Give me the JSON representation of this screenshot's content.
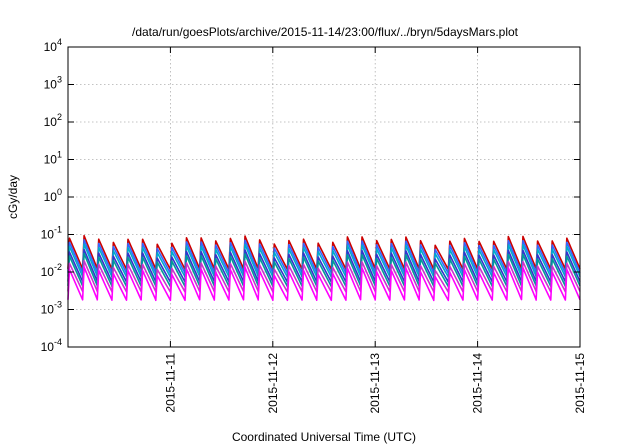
{
  "chart_data": {
    "type": "line",
    "title": "/data/run/goesPlots/archive/2015-11-14/23:00/flux/../bryn/5daysMars.plot",
    "xlabel": "Coordinated Universal Time (UTC)",
    "ylabel": "cGy/day",
    "yscale": "log",
    "ylim": [
      0.0001,
      10000
    ],
    "xlim": [
      "2015-11-10",
      "2015-11-15"
    ],
    "x_ticks": [
      "2015-11-11",
      "2015-11-12",
      "2015-11-13",
      "2015-11-14",
      "2015-11-15"
    ],
    "y_ticks": [
      {
        "base": "10",
        "exp": "-4"
      },
      {
        "base": "10",
        "exp": "-3"
      },
      {
        "base": "10",
        "exp": "-2"
      },
      {
        "base": "10",
        "exp": "-1"
      },
      {
        "base": "10",
        "exp": "0"
      },
      {
        "base": "10",
        "exp": "1"
      },
      {
        "base": "10",
        "exp": "2"
      },
      {
        "base": "10",
        "exp": "3"
      },
      {
        "base": "10",
        "exp": "4"
      }
    ],
    "grid": true,
    "pattern": {
      "cycles_per_day": 7,
      "note_peak_to_trough_ratio": 5
    },
    "series": [
      {
        "color": "#cc0000",
        "peak": 0.075,
        "trough": 0.012
      },
      {
        "color": "#3366ff",
        "peak": 0.058,
        "trough": 0.0095
      },
      {
        "color": "#00aacc",
        "peak": 0.045,
        "trough": 0.0075
      },
      {
        "color": "#3333cc",
        "peak": 0.032,
        "trough": 0.0055
      },
      {
        "color": "#009999",
        "peak": 0.025,
        "trough": 0.0042
      },
      {
        "color": "#cc33cc",
        "peak": 0.016,
        "trough": 0.003
      },
      {
        "color": "#ff00ff",
        "peak": 0.011,
        "trough": 0.0018
      }
    ]
  }
}
